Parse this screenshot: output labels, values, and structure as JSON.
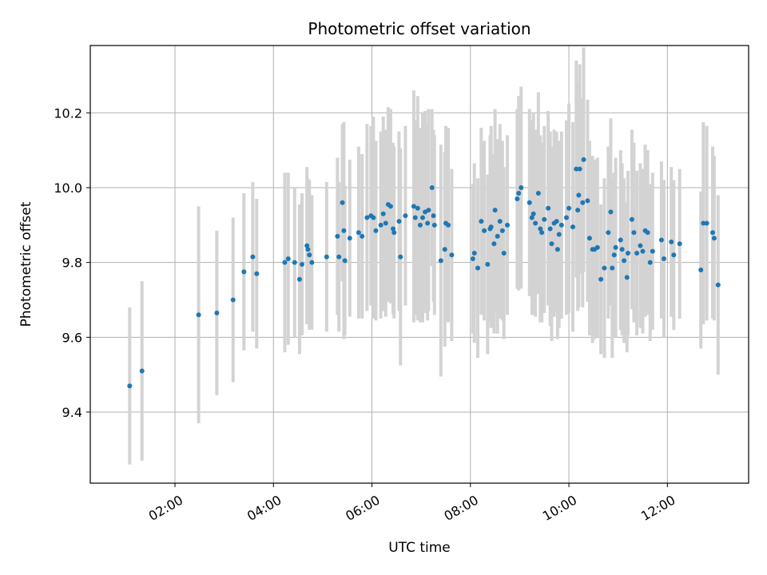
{
  "chart_data": {
    "type": "scatter",
    "title": "Photometric offset variation",
    "xlabel": "UTC time",
    "ylabel": "Photometric offset",
    "x_unit": "hours UTC",
    "xlim": [
      0.28,
      13.65
    ],
    "ylim": [
      9.21,
      10.38
    ],
    "grid": true,
    "colors": {
      "marker": "#1f77b4",
      "errorbar": "#d3d3d3",
      "grid": "#b0b0b0"
    },
    "x_ticks": [
      {
        "value": 2,
        "label": "02:00"
      },
      {
        "value": 4,
        "label": "04:00"
      },
      {
        "value": 6,
        "label": "06:00"
      },
      {
        "value": 8,
        "label": "08:00"
      },
      {
        "value": 10,
        "label": "10:00"
      },
      {
        "value": 12,
        "label": "12:00"
      }
    ],
    "y_ticks": [
      {
        "value": 9.4,
        "label": "9.4"
      },
      {
        "value": 9.6,
        "label": "9.6"
      },
      {
        "value": 9.8,
        "label": "9.8"
      },
      {
        "value": 10.0,
        "label": "10.0"
      },
      {
        "value": 10.2,
        "label": "10.2"
      }
    ],
    "series": [
      {
        "points": [
          [
            1.08,
            9.47,
            0.21
          ],
          [
            1.33,
            9.51,
            0.24
          ],
          [
            2.48,
            9.66,
            0.29
          ],
          [
            2.85,
            9.665,
            0.22
          ],
          [
            3.18,
            9.7,
            0.22
          ],
          [
            3.4,
            9.775,
            0.21
          ],
          [
            3.58,
            9.815,
            0.2
          ],
          [
            3.66,
            9.77,
            0.2
          ],
          [
            4.23,
            9.8,
            0.24
          ],
          [
            4.3,
            9.81,
            0.23
          ],
          [
            4.43,
            9.8,
            0.2
          ],
          [
            4.53,
            9.755,
            0.2
          ],
          [
            4.58,
            9.795,
            0.19
          ],
          [
            4.68,
            9.845,
            0.21
          ],
          [
            4.7,
            9.835,
            0.19
          ],
          [
            4.73,
            9.82,
            0.2
          ],
          [
            4.78,
            9.8,
            0.18
          ],
          [
            5.08,
            9.815,
            0.2
          ],
          [
            5.3,
            9.87,
            0.21
          ],
          [
            5.33,
            9.815,
            0.2
          ],
          [
            5.4,
            9.96,
            0.21
          ],
          [
            5.43,
            9.885,
            0.29
          ],
          [
            5.45,
            9.805,
            0.2
          ],
          [
            5.55,
            9.865,
            0.21
          ],
          [
            5.73,
            9.88,
            0.23
          ],
          [
            5.8,
            9.87,
            0.22
          ],
          [
            5.9,
            9.92,
            0.25
          ],
          [
            5.98,
            9.925,
            0.24
          ],
          [
            6.03,
            9.92,
            0.27
          ],
          [
            6.08,
            9.885,
            0.24
          ],
          [
            6.18,
            9.9,
            0.25
          ],
          [
            6.23,
            9.93,
            0.26
          ],
          [
            6.28,
            9.905,
            0.25
          ],
          [
            6.33,
            9.955,
            0.26
          ],
          [
            6.38,
            9.95,
            0.26
          ],
          [
            6.43,
            9.89,
            0.23
          ],
          [
            6.45,
            9.88,
            0.23
          ],
          [
            6.55,
            9.91,
            0.24
          ],
          [
            6.58,
            9.815,
            0.29
          ],
          [
            6.68,
            9.925,
            0.24
          ],
          [
            6.85,
            9.95,
            0.31
          ],
          [
            6.88,
            9.92,
            0.26
          ],
          [
            6.93,
            9.945,
            0.3
          ],
          [
            6.98,
            9.9,
            0.26
          ],
          [
            7.03,
            9.92,
            0.28
          ],
          [
            7.08,
            9.935,
            0.27
          ],
          [
            7.13,
            9.905,
            0.26
          ],
          [
            7.15,
            9.94,
            0.27
          ],
          [
            7.22,
            10.0,
            0.21
          ],
          [
            7.25,
            9.925,
            0.23
          ],
          [
            7.27,
            9.9,
            0.24
          ],
          [
            7.4,
            9.805,
            0.31
          ],
          [
            7.48,
            9.835,
            0.26
          ],
          [
            7.5,
            9.905,
            0.26
          ],
          [
            7.55,
            9.9,
            0.26
          ],
          [
            7.62,
            9.82,
            0.23
          ],
          [
            8.05,
            9.81,
            0.2
          ],
          [
            8.08,
            9.825,
            0.24
          ],
          [
            8.15,
            9.785,
            0.24
          ],
          [
            8.22,
            9.91,
            0.25
          ],
          [
            8.28,
            9.885,
            0.24
          ],
          [
            8.35,
            9.795,
            0.24
          ],
          [
            8.4,
            9.89,
            0.25
          ],
          [
            8.42,
            9.895,
            0.27
          ],
          [
            8.48,
            9.85,
            0.24
          ],
          [
            8.5,
            9.94,
            0.27
          ],
          [
            8.55,
            9.87,
            0.26
          ],
          [
            8.6,
            9.91,
            0.26
          ],
          [
            8.65,
            9.885,
            0.24
          ],
          [
            8.68,
            9.825,
            0.23
          ],
          [
            8.75,
            9.9,
            0.24
          ],
          [
            8.95,
            9.97,
            0.24
          ],
          [
            8.98,
            9.985,
            0.26
          ],
          [
            9.03,
            10.0,
            0.27
          ],
          [
            9.2,
            9.96,
            0.25
          ],
          [
            9.25,
            9.92,
            0.26
          ],
          [
            9.28,
            9.93,
            0.27
          ],
          [
            9.32,
            9.905,
            0.25
          ],
          [
            9.38,
            9.985,
            0.27
          ],
          [
            9.42,
            9.89,
            0.25
          ],
          [
            9.45,
            9.88,
            0.24
          ],
          [
            9.5,
            9.915,
            0.25
          ],
          [
            9.58,
            9.945,
            0.26
          ],
          [
            9.62,
            9.89,
            0.26
          ],
          [
            9.65,
            9.85,
            0.26
          ],
          [
            9.7,
            9.905,
            0.25
          ],
          [
            9.75,
            9.91,
            0.24
          ],
          [
            9.77,
            9.835,
            0.24
          ],
          [
            9.8,
            9.875,
            0.25
          ],
          [
            9.85,
            9.9,
            0.25
          ],
          [
            9.95,
            9.92,
            0.26
          ],
          [
            10.0,
            9.945,
            0.28
          ],
          [
            10.08,
            9.895,
            0.28
          ],
          [
            10.15,
            10.05,
            0.29
          ],
          [
            10.18,
            9.94,
            0.27
          ],
          [
            10.2,
            9.98,
            0.3
          ],
          [
            10.22,
            10.05,
            0.28
          ],
          [
            10.28,
            9.96,
            0.28
          ],
          [
            10.3,
            10.075,
            0.3
          ],
          [
            10.38,
            9.965,
            0.27
          ],
          [
            10.42,
            9.865,
            0.26
          ],
          [
            10.48,
            9.835,
            0.25
          ],
          [
            10.52,
            9.835,
            0.24
          ],
          [
            10.58,
            9.84,
            0.24
          ],
          [
            10.65,
            9.755,
            0.2
          ],
          [
            10.72,
            9.785,
            0.24
          ],
          [
            10.8,
            9.88,
            0.23
          ],
          [
            10.85,
            9.935,
            0.25
          ],
          [
            10.88,
            9.785,
            0.24
          ],
          [
            10.92,
            9.82,
            0.22
          ],
          [
            10.95,
            9.84,
            0.24
          ],
          [
            11.05,
            9.86,
            0.24
          ],
          [
            11.08,
            9.835,
            0.23
          ],
          [
            11.12,
            9.805,
            0.22
          ],
          [
            11.18,
            9.76,
            0.2
          ],
          [
            11.2,
            9.825,
            0.22
          ],
          [
            11.28,
            9.915,
            0.24
          ],
          [
            11.32,
            9.88,
            0.24
          ],
          [
            11.38,
            9.825,
            0.22
          ],
          [
            11.45,
            9.845,
            0.22
          ],
          [
            11.5,
            9.83,
            0.22
          ],
          [
            11.55,
            9.885,
            0.23
          ],
          [
            11.6,
            9.88,
            0.22
          ],
          [
            11.65,
            9.8,
            0.21
          ],
          [
            11.7,
            9.83,
            0.21
          ],
          [
            11.88,
            9.86,
            0.21
          ],
          [
            11.93,
            9.81,
            0.21
          ],
          [
            12.08,
            9.855,
            0.2
          ],
          [
            12.13,
            9.82,
            0.2
          ],
          [
            12.25,
            9.85,
            0.2
          ],
          [
            12.68,
            9.78,
            0.21
          ],
          [
            12.73,
            9.905,
            0.27
          ],
          [
            12.8,
            9.905,
            0.26
          ],
          [
            12.92,
            9.88,
            0.23
          ],
          [
            12.95,
            9.865,
            0.22
          ],
          [
            13.03,
            9.74,
            0.24
          ]
        ]
      }
    ]
  }
}
